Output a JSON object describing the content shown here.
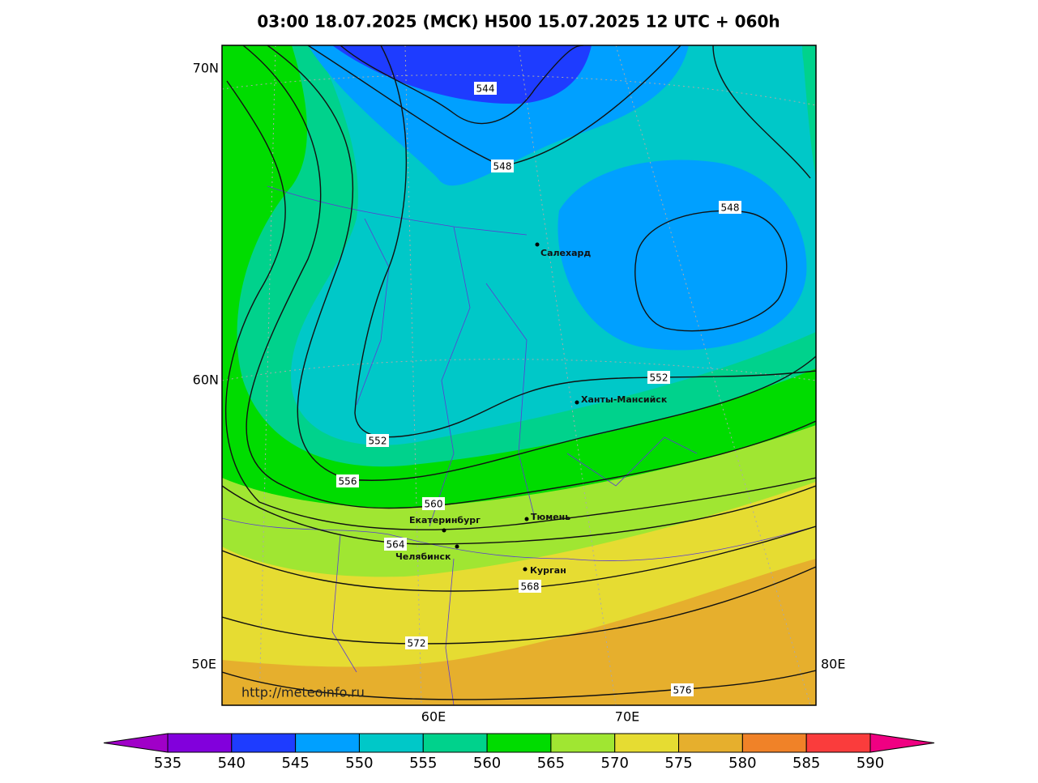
{
  "header": {
    "title": "03:00 18.07.2025 (МСК) H500  15.07.2025 12 UTC + 060h"
  },
  "map": {
    "url": "http://meteoinfo.ru",
    "lat_labels": [
      "70N",
      "60N"
    ],
    "lon_labels": [
      "50E",
      "60E",
      "70E",
      "80E"
    ],
    "contour_labels": [
      544,
      548,
      548,
      552,
      552,
      556,
      560,
      564,
      568,
      572,
      576
    ],
    "cities": [
      "Салехард",
      "Ханты-Мансийск",
      "Екатеринбург",
      "Тюмень",
      "Челябинск",
      "Курган"
    ]
  },
  "colorbar": {
    "ticks": [
      535,
      540,
      545,
      550,
      555,
      560,
      565,
      570,
      575,
      580,
      585,
      590
    ],
    "colors": [
      "#a000c8",
      "#8200dc",
      "#1e3cff",
      "#00a0ff",
      "#00c8c8",
      "#00d28c",
      "#00dc00",
      "#a0e632",
      "#e6dc32",
      "#e6af2d",
      "#f08228",
      "#fa3c3c",
      "#f00082"
    ]
  }
}
